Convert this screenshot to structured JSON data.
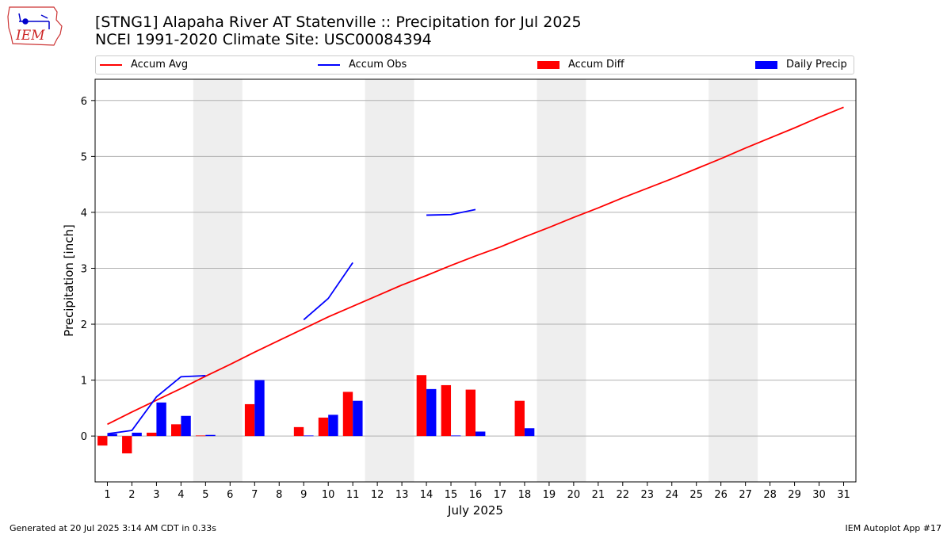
{
  "logo": {
    "text": "IEM"
  },
  "header": {
    "title_line1": "[STNG1] Alapaha River  AT Statenville :: Precipitation for Jul 2025",
    "title_line2": "NCEI 1991-2020 Climate Site: USC00084394"
  },
  "legend": {
    "accum_avg": "Accum Avg",
    "accum_obs": "Accum Obs",
    "accum_diff": "Accum Diff",
    "daily_precip": "Daily Precip"
  },
  "footer": {
    "left": "Generated at 20 Jul 2025 3:14 AM CDT in 0.33s",
    "right": "IEM Autoplot App #17"
  },
  "colors": {
    "avg": "#ff0000",
    "obs": "#0000ff",
    "diff": "#ff0000",
    "daily": "#0000ff",
    "weekend": "#eeeeee",
    "grid": "#b0b0b0"
  },
  "chart_data": {
    "type": "bar",
    "title": "[STNG1] Alapaha River  AT Statenville :: Precipitation for Jul 2025",
    "subtitle": "NCEI 1991-2020 Climate Site: USC00084394",
    "xlabel": "July 2025",
    "ylabel": "Precipitation [inch]",
    "xlim": [
      0.5,
      31.5
    ],
    "ylim": [
      -0.82,
      6.38
    ],
    "y_ticks": [
      0,
      1,
      2,
      3,
      4,
      5,
      6
    ],
    "x": [
      1,
      2,
      3,
      4,
      5,
      6,
      7,
      8,
      9,
      10,
      11,
      12,
      13,
      14,
      15,
      16,
      17,
      18,
      19,
      20,
      21,
      22,
      23,
      24,
      25,
      26,
      27,
      28,
      29,
      30,
      31
    ],
    "grid": "horizontal",
    "weekend_shading": [
      [
        4.5,
        6.5
      ],
      [
        11.5,
        13.5
      ],
      [
        18.5,
        20.5
      ],
      [
        25.5,
        27.5
      ]
    ],
    "series": [
      {
        "name": "Accum Avg",
        "kind": "line",
        "x": [
          1,
          2,
          3,
          4,
          5,
          6,
          7,
          8,
          9,
          10,
          11,
          12,
          13,
          14,
          15,
          16,
          17,
          18,
          19,
          20,
          21,
          22,
          23,
          24,
          25,
          26,
          27,
          28,
          29,
          30,
          31
        ],
        "values": [
          0.21,
          0.43,
          0.64,
          0.85,
          1.07,
          1.28,
          1.5,
          1.71,
          1.92,
          2.13,
          2.32,
          2.51,
          2.7,
          2.87,
          3.05,
          3.22,
          3.38,
          3.56,
          3.73,
          3.91,
          4.08,
          4.26,
          4.43,
          4.6,
          4.78,
          4.96,
          5.15,
          5.33,
          5.51,
          5.7,
          5.88
        ]
      },
      {
        "name": "Accum Obs",
        "kind": "line",
        "segments": [
          {
            "x": [
              1,
              2,
              3,
              4,
              5
            ],
            "values": [
              0.04,
              0.1,
              0.7,
              1.06,
              1.08
            ]
          },
          {
            "x": [
              9,
              10,
              11
            ],
            "values": [
              2.08,
              2.46,
              3.1
            ]
          },
          {
            "x": [
              14,
              15,
              16
            ],
            "values": [
              3.95,
              3.96,
              4.05
            ]
          }
        ]
      },
      {
        "name": "Accum Diff",
        "kind": "bar",
        "x": [
          1,
          2,
          3,
          4,
          5,
          7,
          9,
          10,
          11,
          14,
          15,
          16,
          18
        ],
        "values": [
          -0.17,
          -0.31,
          0.06,
          0.21,
          0.01,
          0.57,
          0.16,
          0.33,
          0.79,
          1.09,
          0.91,
          0.83,
          0.63
        ]
      },
      {
        "name": "Daily Precip",
        "kind": "bar",
        "x": [
          1,
          2,
          3,
          4,
          5,
          7,
          9,
          10,
          11,
          14,
          15,
          16,
          18
        ],
        "values": [
          0.04,
          0.06,
          0.6,
          0.36,
          0.02,
          1.0,
          0.01,
          0.38,
          0.63,
          0.84,
          0.01,
          0.08,
          0.14
        ]
      }
    ]
  }
}
